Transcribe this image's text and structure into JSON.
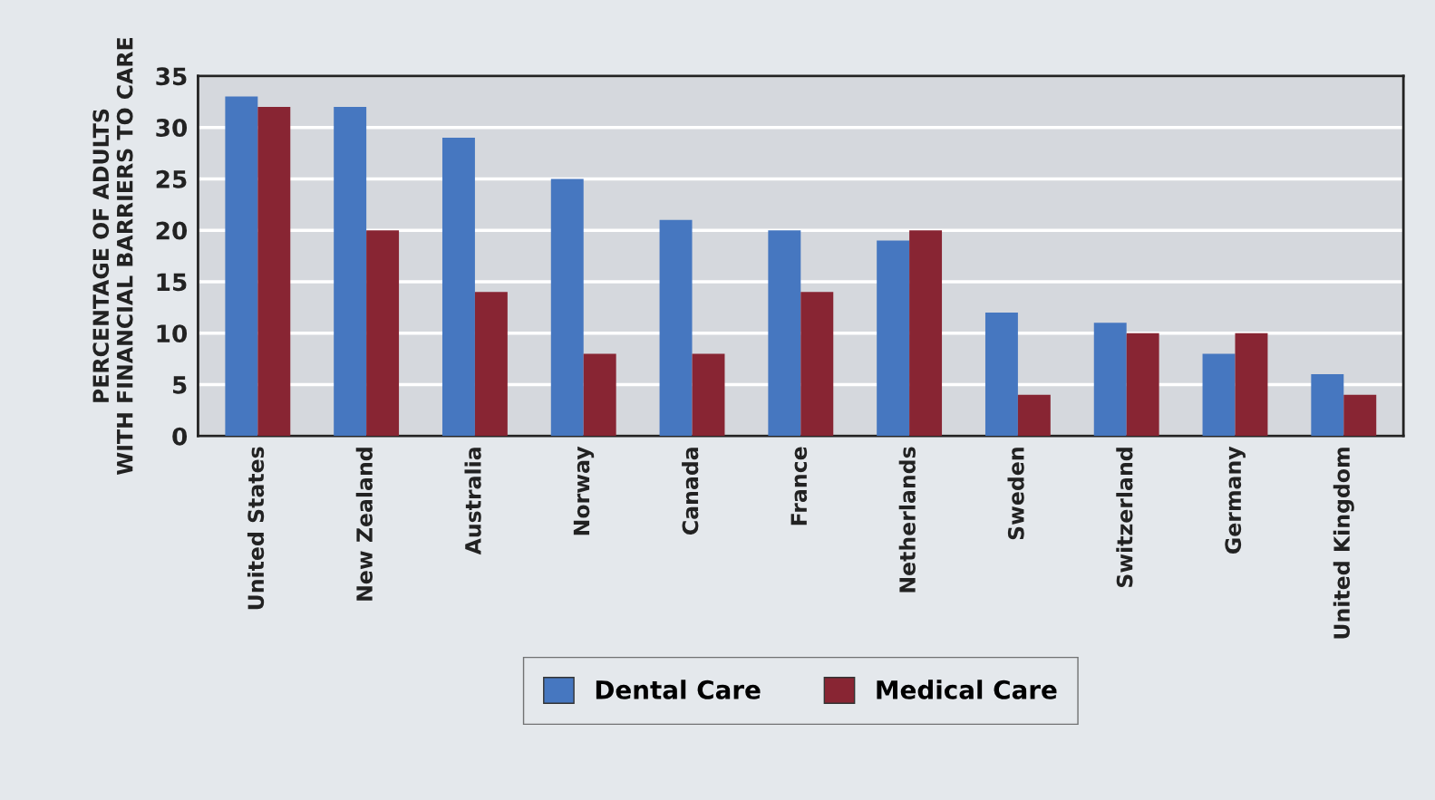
{
  "chart_data": {
    "type": "bar",
    "ylabel": "PERCENTAGE OF ADULTS\nWITH FINANCIAL BARRIERS TO CARE",
    "categories": [
      "United States",
      "New Zealand",
      "Australia",
      "Norway",
      "Canada",
      "France",
      "Netherlands",
      "Sweden",
      "Switzerland",
      "Germany",
      "United Kingdom"
    ],
    "series": [
      {
        "name": "Dental Care",
        "color": "#4677c0",
        "values": [
          33,
          32,
          29,
          25,
          21,
          20,
          19,
          12,
          11,
          8,
          6
        ]
      },
      {
        "name": "Medical Care",
        "color": "#882533",
        "values": [
          32,
          20,
          14,
          8,
          8,
          14,
          20,
          4,
          10,
          10,
          4
        ]
      }
    ],
    "ylim": [
      0,
      35
    ],
    "yticks": [
      0,
      5,
      10,
      15,
      20,
      25,
      30,
      35
    ],
    "grid": "y",
    "legend": "bottom"
  }
}
